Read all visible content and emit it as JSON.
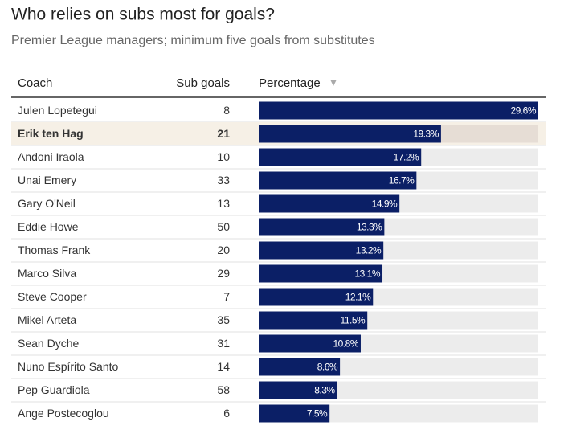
{
  "chart_data": {
    "type": "bar",
    "title": "Who relies on subs most for goals?",
    "subtitle": "Premier League managers; minimum five goals from substitutes",
    "columns": [
      "Coach",
      "Sub goals",
      "Percentage"
    ],
    "categories": [
      "Julen Lopetegui",
      "Erik ten Hag",
      "Andoni Iraola",
      "Unai Emery",
      "Gary O'Neil",
      "Eddie Howe",
      "Thomas Frank",
      "Marco Silva",
      "Steve Cooper",
      "Mikel Arteta",
      "Sean Dyche",
      "Nuno Espírito Santo",
      "Pep Guardiola",
      "Ange Postecoglou"
    ],
    "sub_goals": [
      8,
      21,
      10,
      33,
      13,
      50,
      20,
      29,
      7,
      35,
      31,
      14,
      58,
      6
    ],
    "values": [
      29.6,
      19.3,
      17.2,
      16.7,
      14.9,
      13.3,
      13.2,
      13.1,
      12.1,
      11.5,
      10.8,
      8.6,
      8.3,
      7.5
    ],
    "value_labels": [
      "29.6%",
      "19.3%",
      "17.2%",
      "16.7%",
      "14.9%",
      "13.3%",
      "13.2%",
      "13.1%",
      "12.1%",
      "11.5%",
      "10.8%",
      "8.6%",
      "8.3%",
      "7.5%"
    ],
    "xlim": [
      0,
      29.6
    ],
    "color": "#0b1f66",
    "track_color": "#ececec",
    "highlight": "Erik ten Hag",
    "highlight_color": "#f6f0e6",
    "highlight_track_color": "#e6ddd5"
  }
}
